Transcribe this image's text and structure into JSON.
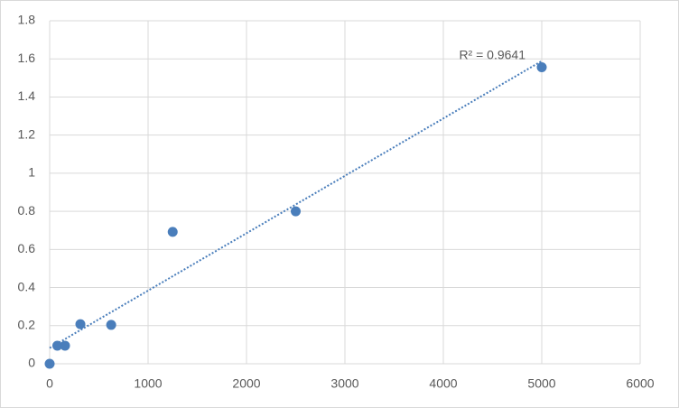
{
  "chart_data": {
    "type": "scatter",
    "x": [
      0,
      78,
      156,
      312,
      625,
      1250,
      2500,
      5000
    ],
    "series": [
      {
        "color": "#4a7ebb",
        "values": [
          0,
          0.095,
          0.095,
          0.208,
          0.204,
          0.692,
          0.8,
          1.556
        ]
      }
    ],
    "xlim": [
      0,
      6000
    ],
    "xticks": [
      0,
      1000,
      2000,
      3000,
      4000,
      5000,
      6000
    ],
    "ylim": [
      0,
      1.8
    ],
    "yticks": [
      0,
      0.2,
      0.4,
      0.6,
      0.8,
      1,
      1.2,
      1.4,
      1.6,
      1.8
    ],
    "trendline": {
      "type": "linear",
      "color": "#4a7ebb",
      "dotted": true
    },
    "annotation": "R² = 0.9641",
    "grid": true
  }
}
